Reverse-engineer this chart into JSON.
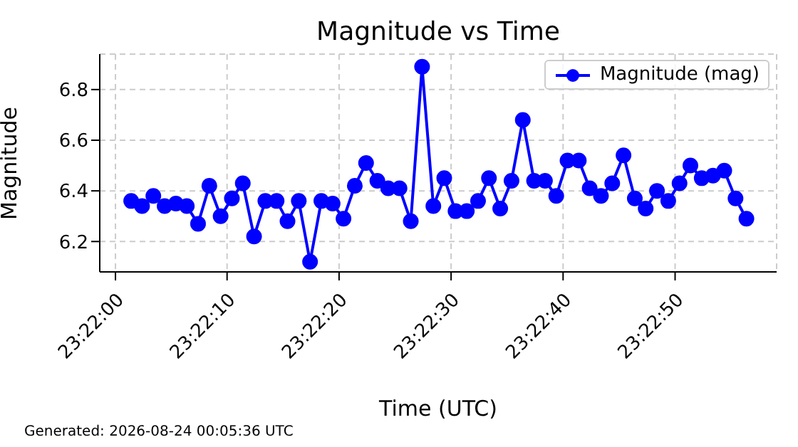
{
  "chart_data": {
    "type": "line",
    "title": "Magnitude vs Time",
    "xlabel": "Time (UTC)",
    "ylabel": "Magnitude",
    "annotations": [
      "Generated: 2026-08-24 00:05:36 UTC"
    ],
    "x": [
      23.36706,
      23.36733,
      23.36761,
      23.36789,
      23.36817,
      23.36844,
      23.36872,
      23.369,
      23.36928,
      23.36956,
      23.36983,
      23.37011,
      23.37039,
      23.37067,
      23.37094,
      23.37122,
      23.3715,
      23.37178,
      23.37206,
      23.37233,
      23.37261,
      23.37289,
      23.37317,
      23.37344,
      23.37372,
      23.374,
      23.37428,
      23.37456,
      23.37483,
      23.37511,
      23.37539,
      23.37567,
      23.37594,
      23.37622,
      23.3765,
      23.37678,
      23.37706,
      23.37733,
      23.37761,
      23.37789,
      23.37817,
      23.37844,
      23.37872,
      23.379,
      23.37928,
      23.37956,
      23.37983,
      23.38011,
      23.38039,
      23.38067,
      23.38094,
      23.38122,
      23.3815,
      23.38178,
      23.38206,
      23.38233
    ],
    "series": [
      {
        "name": "Magnitude (mag)",
        "color": "#0000ff",
        "values": [
          6.36,
          6.34,
          6.38,
          6.34,
          6.35,
          6.34,
          6.27,
          6.42,
          6.3,
          6.37,
          6.43,
          6.22,
          6.36,
          6.36,
          6.28,
          6.36,
          6.12,
          6.36,
          6.35,
          6.29,
          6.42,
          6.51,
          6.44,
          6.41,
          6.41,
          6.28,
          6.89,
          6.34,
          6.45,
          6.32,
          6.32,
          6.36,
          6.45,
          6.33,
          6.44,
          6.68,
          6.44,
          6.44,
          6.38,
          6.52,
          6.52,
          6.41,
          6.38,
          6.43,
          6.54,
          6.37,
          6.33,
          6.4,
          6.36,
          6.43,
          6.5,
          6.45,
          6.46,
          6.48,
          6.37,
          6.29
        ]
      }
    ],
    "xlim": [
      23.36628,
      23.38308
    ],
    "xticks": [
      {
        "value": 23.36667,
        "label": "23:22:00"
      },
      {
        "value": 23.36944,
        "label": "23:22:10"
      },
      {
        "value": 23.37222,
        "label": "23:22:20"
      },
      {
        "value": 23.375,
        "label": "23:22:30"
      },
      {
        "value": 23.37778,
        "label": "23:22:40"
      },
      {
        "value": 23.38056,
        "label": "23:22:50"
      }
    ],
    "ylim": [
      6.08,
      6.94
    ],
    "yticks": [
      6.2,
      6.4,
      6.6,
      6.8
    ],
    "grid": true,
    "legend": "top right",
    "marker": "circle",
    "line_style": "solid"
  }
}
